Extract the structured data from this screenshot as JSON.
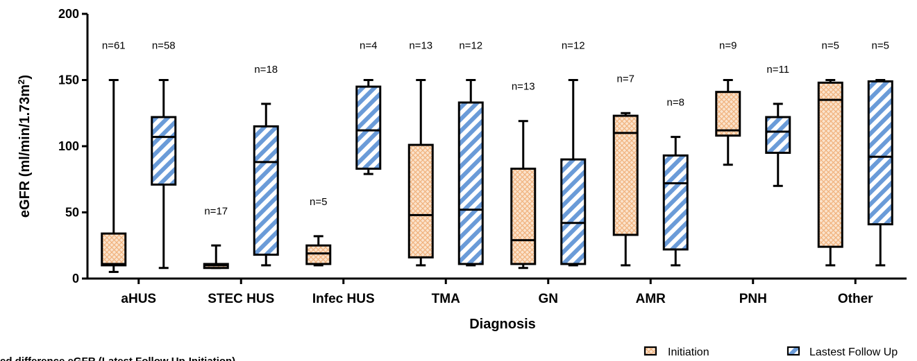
{
  "chart_data": {
    "type": "box",
    "xlabel": "Diagnosis",
    "ylabel_main": "eGFR (ml/min/1.73m",
    "ylabel_sup": "2",
    "ylabel_close": ")",
    "ylim": [
      0,
      200
    ],
    "yticks": [
      "0",
      "50",
      "100",
      "150",
      "200"
    ],
    "categories": [
      "aHUS",
      "STEC HUS",
      "Infec HUS",
      "TMA",
      "GN",
      "AMR",
      "PNH",
      "Other"
    ],
    "series": [
      {
        "name": "Initiation",
        "color": "#f5c9a0",
        "pattern": "crosshatch",
        "boxes": [
          {
            "min": 5,
            "q1": 10,
            "median": 11,
            "q3": 34,
            "max": 150,
            "n": "n=61"
          },
          {
            "min": 8,
            "q1": 8,
            "median": 10,
            "q3": 11,
            "max": 25,
            "n": "n=17"
          },
          {
            "min": 10,
            "q1": 11,
            "median": 19,
            "q3": 25,
            "max": 32,
            "n": "n=5"
          },
          {
            "min": 10,
            "q1": 16,
            "median": 48,
            "q3": 101,
            "max": 150,
            "n": "n=13"
          },
          {
            "min": 8,
            "q1": 11,
            "median": 29,
            "q3": 83,
            "max": 119,
            "n": "n=13"
          },
          {
            "min": 10,
            "q1": 33,
            "median": 110,
            "q3": 123,
            "max": 125,
            "n": "n=7"
          },
          {
            "min": 86,
            "q1": 108,
            "median": 112,
            "q3": 141,
            "max": 150,
            "n": "n=9"
          },
          {
            "min": 10,
            "q1": 24,
            "median": 135,
            "q3": 148,
            "max": 150,
            "n": "n=5"
          }
        ]
      },
      {
        "name": "Lastest Follow Up",
        "color": "#6a9bd8",
        "pattern": "diagonal",
        "boxes": [
          {
            "min": 8,
            "q1": 71,
            "median": 107,
            "q3": 122,
            "max": 150,
            "n": "n=58"
          },
          {
            "min": 10,
            "q1": 18,
            "median": 88,
            "q3": 115,
            "max": 132,
            "n": "n=18"
          },
          {
            "min": 79,
            "q1": 83,
            "median": 112,
            "q3": 145,
            "max": 150,
            "n": "n=4"
          },
          {
            "min": 10,
            "q1": 11,
            "median": 52,
            "q3": 133,
            "max": 150,
            "n": "n=12"
          },
          {
            "min": 10,
            "q1": 11,
            "median": 42,
            "q3": 90,
            "max": 150,
            "n": "n=12"
          },
          {
            "min": 10,
            "q1": 22,
            "median": 72,
            "q3": 93,
            "max": 107,
            "n": "n=8"
          },
          {
            "min": 70,
            "q1": 95,
            "median": 111,
            "q3": 122,
            "max": 132,
            "n": "n=11"
          },
          {
            "min": 10,
            "q1": 41,
            "median": 92,
            "q3": 149,
            "max": 150,
            "n": "n=5"
          }
        ]
      }
    ],
    "legend_position": "bottom-right",
    "caption": "ed difference eGFR (Latest Follow Up-Initiation)"
  }
}
